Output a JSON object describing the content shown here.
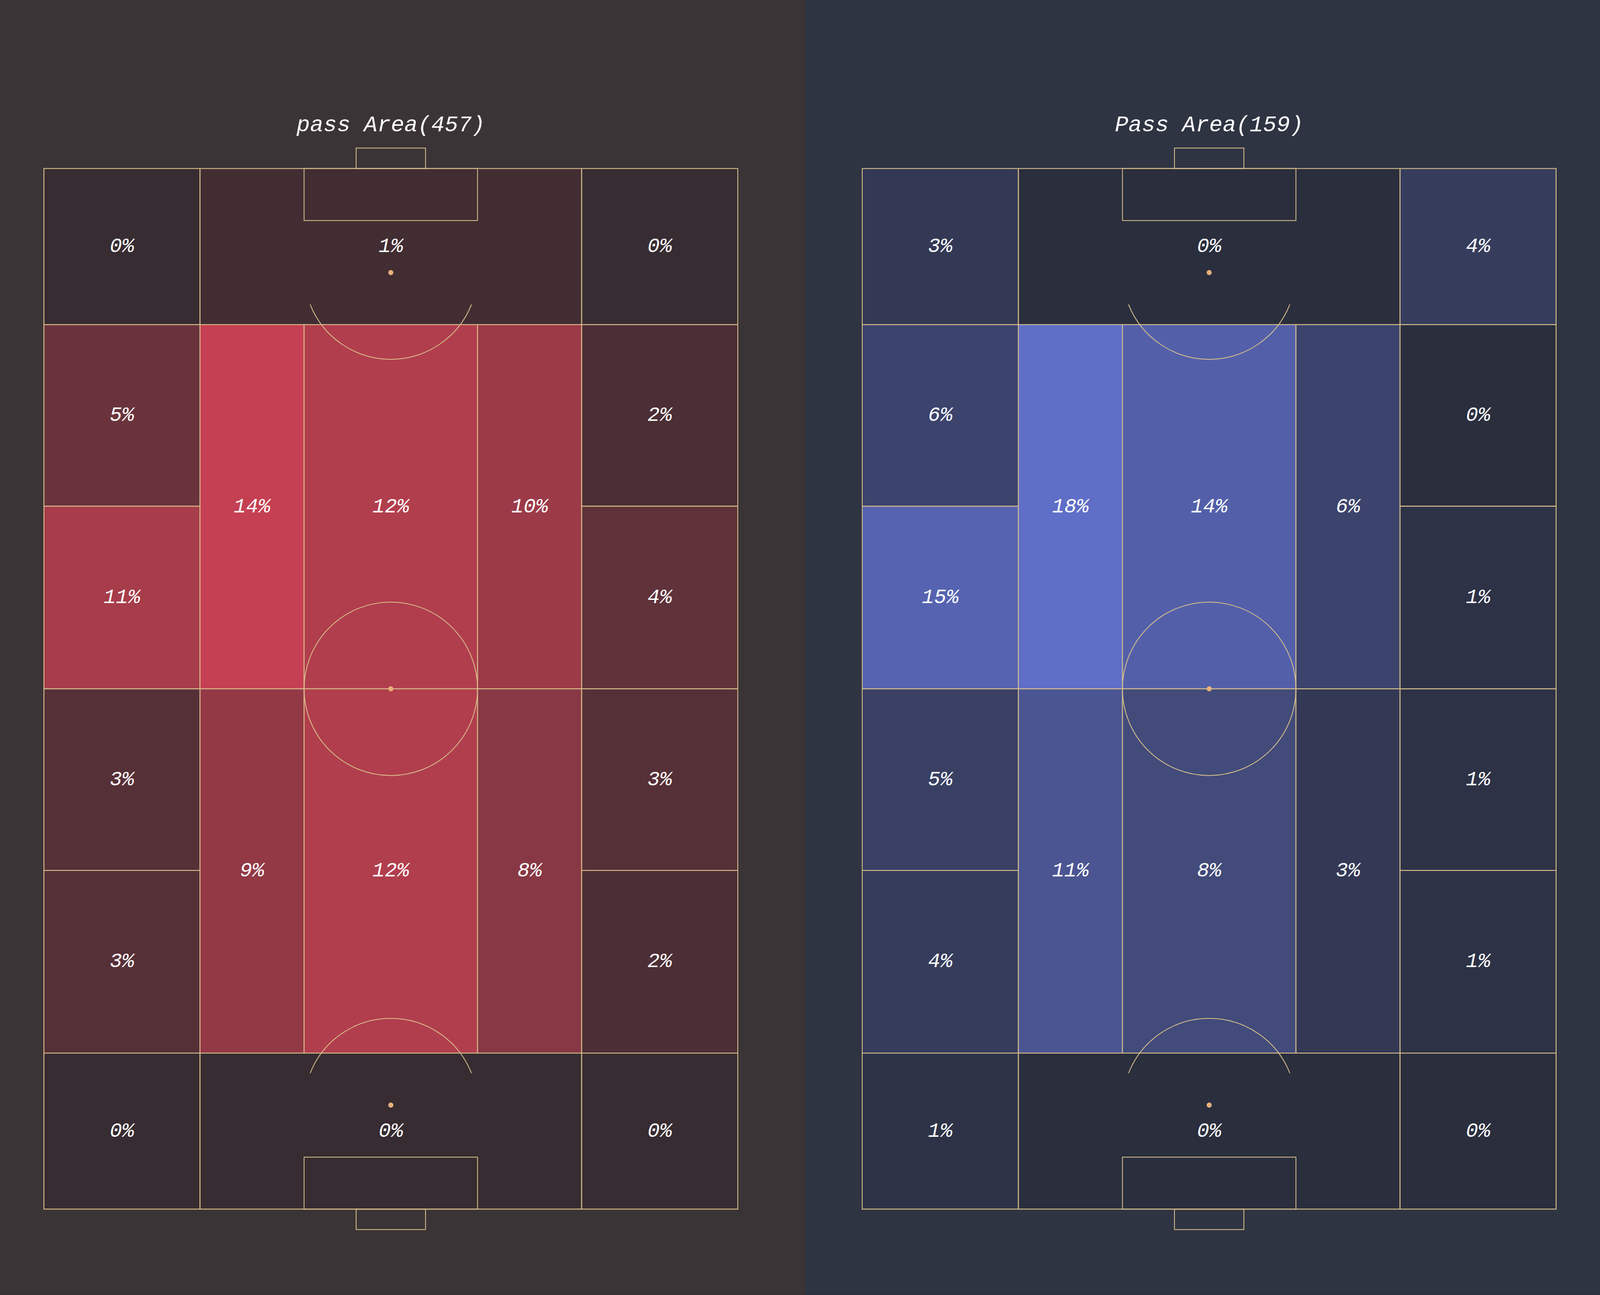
{
  "chart_data": [
    {
      "type": "heatmap",
      "title": "pass Area(457)",
      "color": "#f0475c",
      "values": [
        0,
        1,
        0,
        5,
        11,
        14,
        12,
        10,
        2,
        4,
        3,
        3,
        9,
        12,
        8,
        3,
        2,
        0,
        0,
        0
      ],
      "value_labels": [
        "0%",
        "1%",
        "0%",
        "5%",
        "11%",
        "14%",
        "12%",
        "10%",
        "2%",
        "4%",
        "3%",
        "3%",
        "9%",
        "12%",
        "8%",
        "3%",
        "2%",
        "0%",
        "0%",
        "0%"
      ]
    },
    {
      "type": "heatmap",
      "title": "Pass Area(159)",
      "color": "#6f82f0",
      "values": [
        3,
        0,
        4,
        6,
        15,
        18,
        14,
        6,
        0,
        1,
        5,
        4,
        11,
        8,
        3,
        1,
        1,
        1,
        0,
        0
      ],
      "value_labels": [
        "3%",
        "0%",
        "4%",
        "6%",
        "15%",
        "18%",
        "14%",
        "6%",
        "0%",
        "1%",
        "5%",
        "4%",
        "11%",
        "8%",
        "3%",
        "1%",
        "1%",
        "1%",
        "0%",
        "0%"
      ]
    }
  ]
}
